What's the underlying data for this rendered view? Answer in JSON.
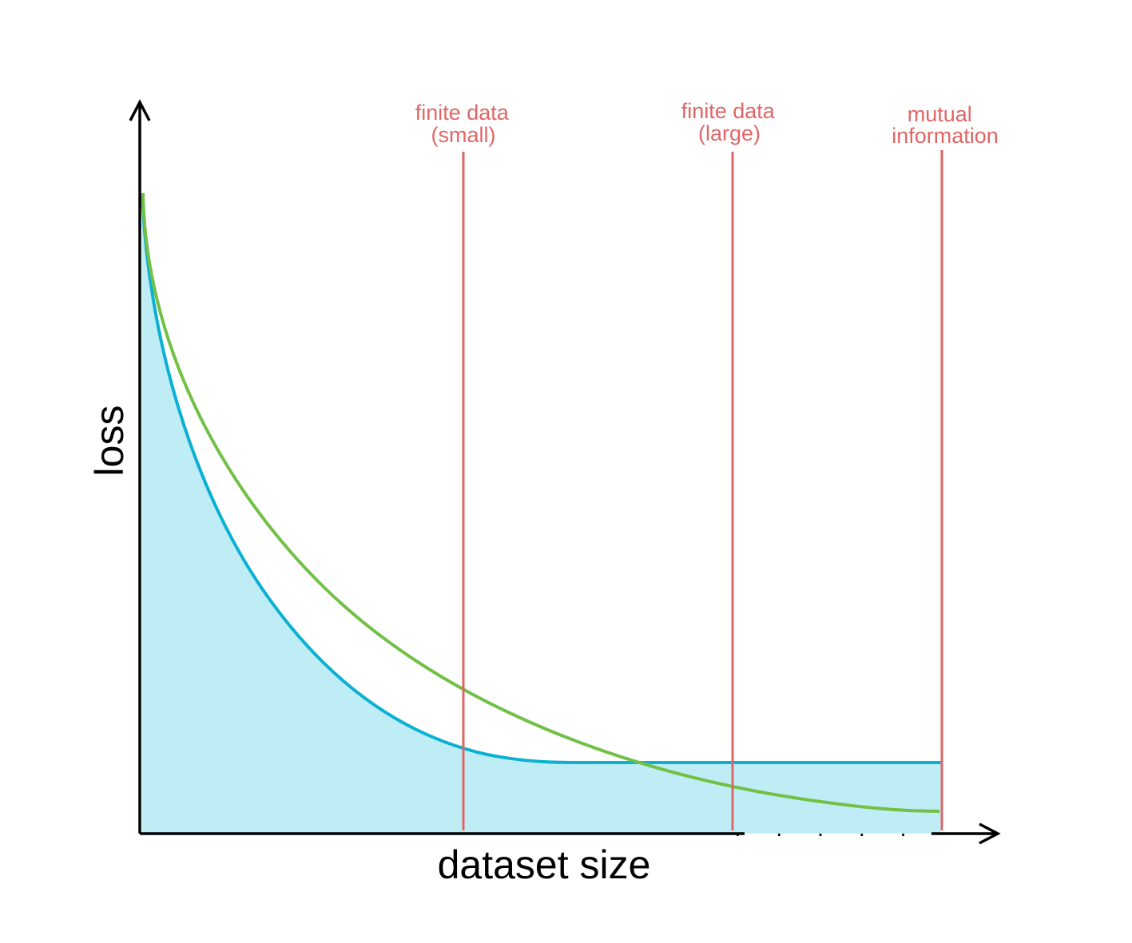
{
  "axes": {
    "y_label": "loss",
    "x_label": "dataset size"
  },
  "markers": [
    {
      "id": "finite-data-small",
      "lines": [
        "finite data",
        "(small)"
      ]
    },
    {
      "id": "finite-data-large",
      "lines": [
        "finite data",
        "(large)"
      ]
    },
    {
      "id": "mutual-information",
      "lines": [
        "mutual",
        "information"
      ]
    }
  ],
  "colors": {
    "marker": "#e06666",
    "blue_curve": "#0bb0d3",
    "blue_fill": "#bfedf5",
    "green_curve": "#72c046",
    "axis": "#000000"
  },
  "continuation": "....."
}
